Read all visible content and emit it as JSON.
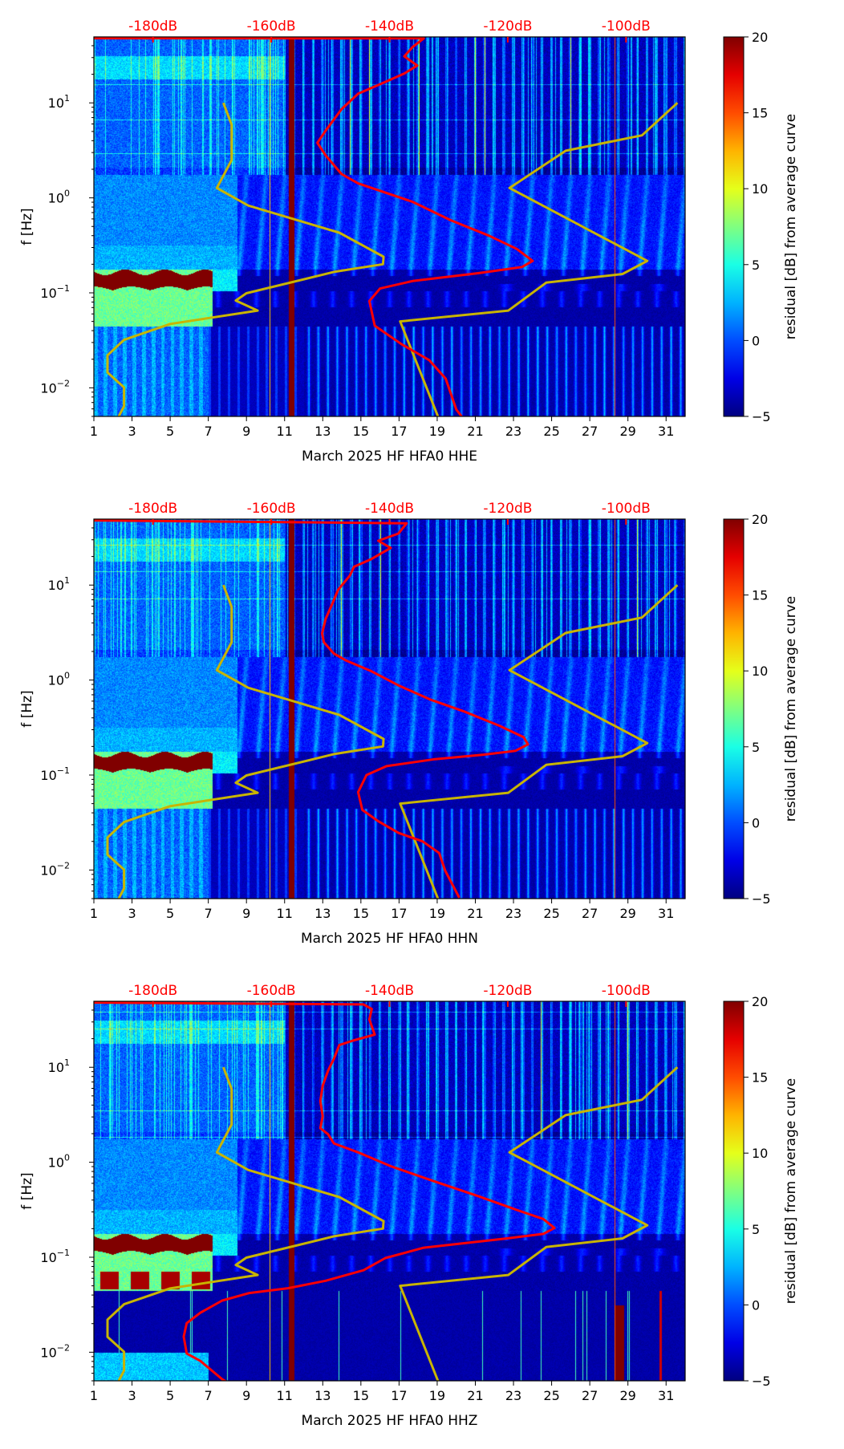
{
  "chart_data": [
    {
      "type": "heatmap",
      "xlabel": "March 2025 HF HFA0  HHE",
      "ylabel": "f [Hz]",
      "colorbar_label": "residual [dB] from average curve",
      "red_curve": [
        [
          -190,
          48
        ],
        [
          -134.2,
          47.8
        ],
        [
          -136.1,
          38.7
        ],
        [
          -137.5,
          30.9
        ],
        [
          -135.3,
          24.7
        ],
        [
          -137.5,
          20.4
        ],
        [
          -141.6,
          15.7
        ],
        [
          -145.3,
          12.5
        ],
        [
          -148.1,
          8.6
        ],
        [
          -150.8,
          5.1
        ],
        [
          -152.2,
          3.8
        ],
        [
          -150.8,
          2.8
        ],
        [
          -148.1,
          1.78
        ],
        [
          -145.3,
          1.42
        ],
        [
          -136.1,
          0.91
        ],
        [
          -129.6,
          0.58
        ],
        [
          -123.2,
          0.4
        ],
        [
          -118.5,
          0.29
        ],
        [
          -115.8,
          0.217
        ],
        [
          -117.6,
          0.187
        ],
        [
          -125.0,
          0.161
        ],
        [
          -136.1,
          0.133
        ],
        [
          -141.6,
          0.111
        ],
        [
          -143.4,
          0.082
        ],
        [
          -142.5,
          0.045
        ],
        [
          -137.9,
          0.0286
        ],
        [
          -133.3,
          0.0196
        ],
        [
          -130.5,
          0.0125
        ],
        [
          -128.7,
          0.0059
        ],
        [
          -127.8,
          0.005
        ]
      ]
    },
    {
      "type": "heatmap",
      "xlabel": "March 2025 HF HFA0  HHN",
      "ylabel": "f [Hz]",
      "colorbar_label": "residual [dB] from average curve",
      "red_curve": [
        [
          -190,
          48
        ],
        [
          -137.1,
          44.7
        ],
        [
          -138.5,
          34.9
        ],
        [
          -141.9,
          29.3
        ],
        [
          -139.8,
          24.6
        ],
        [
          -143.2,
          18.6
        ],
        [
          -146.0,
          15.6
        ],
        [
          -146.7,
          12.6
        ],
        [
          -148.7,
          8.9
        ],
        [
          -149.7,
          6.3
        ],
        [
          -150.8,
          4.4
        ],
        [
          -151.4,
          3.1
        ],
        [
          -151.1,
          2.5
        ],
        [
          -149.4,
          1.9
        ],
        [
          -147.3,
          1.6
        ],
        [
          -143.2,
          1.25
        ],
        [
          -138.5,
          0.88
        ],
        [
          -133.0,
          0.62
        ],
        [
          -127.5,
          0.47
        ],
        [
          -121.4,
          0.33
        ],
        [
          -117.3,
          0.25
        ],
        [
          -116.6,
          0.21
        ],
        [
          -118.7,
          0.18
        ],
        [
          -124.1,
          0.164
        ],
        [
          -132.3,
          0.147
        ],
        [
          -140.5,
          0.124
        ],
        [
          -143.9,
          0.1
        ],
        [
          -145.3,
          0.066
        ],
        [
          -144.6,
          0.043
        ],
        [
          -141.9,
          0.0326
        ],
        [
          -138.5,
          0.0246
        ],
        [
          -134.4,
          0.02
        ],
        [
          -131.6,
          0.0151
        ],
        [
          -130.6,
          0.0099
        ],
        [
          -128.2,
          0.0051
        ]
      ]
    },
    {
      "type": "heatmap",
      "xlabel": "March 2025 HF HFA0  HHZ",
      "ylabel": "f [Hz]",
      "colorbar_label": "residual [dB] from average curve",
      "red_curve": [
        [
          -190,
          48
        ],
        [
          -144.4,
          45.9
        ],
        [
          -143.0,
          41.1
        ],
        [
          -143.4,
          31.8
        ],
        [
          -142.5,
          22.1
        ],
        [
          -146.2,
          19.1
        ],
        [
          -148.5,
          17.1
        ],
        [
          -149.4,
          12.3
        ],
        [
          -150.4,
          9.2
        ],
        [
          -151.3,
          6.4
        ],
        [
          -151.7,
          4.4
        ],
        [
          -151.3,
          3.05
        ],
        [
          -151.7,
          2.28
        ],
        [
          -150.4,
          1.97
        ],
        [
          -149.4,
          1.58
        ],
        [
          -145.3,
          1.27
        ],
        [
          -139.8,
          0.91
        ],
        [
          -132.4,
          0.63
        ],
        [
          -125.0,
          0.44
        ],
        [
          -118.5,
          0.315
        ],
        [
          -114.0,
          0.253
        ],
        [
          -112.1,
          0.203
        ],
        [
          -114.0,
          0.176
        ],
        [
          -120.4,
          0.157
        ],
        [
          -134.2,
          0.126
        ],
        [
          -140.7,
          0.098
        ],
        [
          -144.4,
          0.073
        ],
        [
          -150.8,
          0.0565
        ],
        [
          -157.3,
          0.047
        ],
        [
          -163.7,
          0.042
        ],
        [
          -168.3,
          0.035
        ],
        [
          -172.0,
          0.026
        ],
        [
          -174.3,
          0.0202
        ],
        [
          -174.8,
          0.0146
        ],
        [
          -174.3,
          0.0097
        ],
        [
          -172.0,
          0.0081
        ],
        [
          -168.3,
          0.0052
        ],
        [
          -167.4,
          0.0048
        ]
      ]
    }
  ],
  "shared": {
    "x_range_days": [
      1,
      32
    ],
    "x_ticks": [
      "1",
      "3",
      "5",
      "7",
      "9",
      "11",
      "13",
      "15",
      "17",
      "19",
      "21",
      "23",
      "25",
      "27",
      "29",
      "31"
    ],
    "y_range_hz": [
      0.005,
      49.5
    ],
    "y_ticks": [
      {
        "base": "10",
        "exp": "−2",
        "value": 0.01
      },
      {
        "base": "10",
        "exp": "−1",
        "value": 0.1
      },
      {
        "base": "10",
        "exp": "0",
        "value": 1
      },
      {
        "base": "10",
        "exp": "1",
        "value": 10
      }
    ],
    "top_axis_db_range": [
      -190,
      -90
    ],
    "top_ticks": [
      {
        "label": "-180dB",
        "value": -180
      },
      {
        "label": "-160dB",
        "value": -160
      },
      {
        "label": "-140dB",
        "value": -140
      },
      {
        "label": "-120dB",
        "value": -120
      },
      {
        "label": "-100dB",
        "value": -100
      }
    ],
    "colorbar_range": [
      -5,
      20
    ],
    "colorbar_ticks": [
      {
        "label": "20",
        "value": 20
      },
      {
        "label": "15",
        "value": 15
      },
      {
        "label": "10",
        "value": 10
      },
      {
        "label": "5",
        "value": 5
      },
      {
        "label": "0",
        "value": 0
      },
      {
        "label": "−5",
        "value": -5
      }
    ],
    "nlnm_curve": [
      [
        -168.1,
        10
      ],
      [
        -166.7,
        5.9
      ],
      [
        -166.7,
        2.5
      ],
      [
        -169.2,
        1.27
      ],
      [
        -163.9,
        0.83
      ],
      [
        -148.5,
        0.43
      ],
      [
        -141.0,
        0.24
      ],
      [
        -141.1,
        0.2
      ],
      [
        -149.2,
        0.167
      ],
      [
        -164.2,
        0.099
      ],
      [
        -166.0,
        0.083
      ],
      [
        -162.3,
        0.065
      ],
      [
        -177.1,
        0.047
      ],
      [
        -184.9,
        0.032
      ],
      [
        -187.7,
        0.022
      ],
      [
        -187.7,
        0.0145
      ],
      [
        -184.9,
        0.0101
      ],
      [
        -184.9,
        0.0064
      ],
      [
        -185.8,
        0.005
      ]
    ],
    "nhnm_curve": [
      [
        -91.3,
        10
      ],
      [
        -97.3,
        4.55
      ],
      [
        -110.2,
        3.13
      ],
      [
        -119.7,
        1.27
      ],
      [
        -96.4,
        0.217
      ],
      [
        -100.6,
        0.158
      ],
      [
        -113.5,
        0.128
      ],
      [
        -119.9,
        0.065
      ],
      [
        -138.2,
        0.05
      ],
      [
        -131.8,
        0.005
      ]
    ],
    "colors": {
      "red_curve": "#ff0000",
      "model_curves": "#c8b400",
      "top_labels": "#ff0000"
    }
  }
}
